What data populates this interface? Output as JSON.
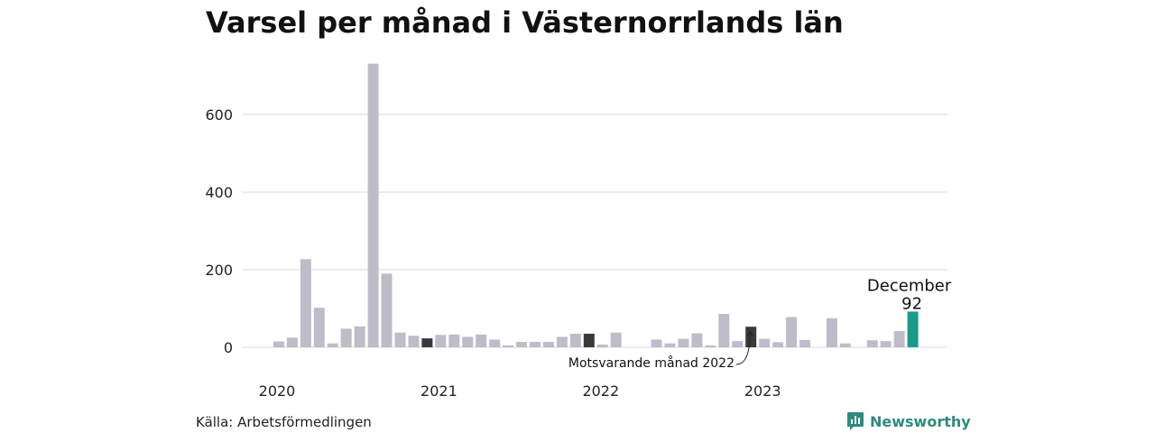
{
  "title": "Varsel per månad i Västernorrlands län",
  "source": "Källa: Arbetsförmedlingen",
  "brand": {
    "name": "Newsworthy",
    "icon": "bar-chart-speech-icon"
  },
  "colors": {
    "default": "#bfbcc9",
    "comparison": "#3a3a3a",
    "highlight": "#1a9a8b",
    "grid": "#d9d9d9"
  },
  "chart_data": {
    "type": "bar",
    "title": "Varsel per månad i Västernorrlands län",
    "xlabel": "",
    "ylabel": "",
    "ylim": [
      0,
      730
    ],
    "yticks": [
      0,
      200,
      400,
      600
    ],
    "grid": true,
    "year_labels": [
      {
        "label": "2020",
        "index": 0
      },
      {
        "label": "2021",
        "index": 12
      },
      {
        "label": "2022",
        "index": 24
      },
      {
        "label": "2023",
        "index": 36
      }
    ],
    "values": [
      0,
      15,
      25,
      227,
      102,
      10,
      48,
      54,
      731,
      190,
      38,
      30,
      23,
      32,
      33,
      27,
      33,
      20,
      5,
      14,
      14,
      14,
      27,
      35,
      35,
      7,
      38,
      0,
      0,
      20,
      10,
      22,
      36,
      5,
      86,
      16,
      53,
      22,
      13,
      78,
      19,
      0,
      75,
      10,
      0,
      18,
      16,
      42,
      92
    ],
    "comparison_indices": [
      12,
      24,
      36
    ],
    "highlight_index": 48,
    "annotations": {
      "highlight_label": "December",
      "highlight_value": "92",
      "comparison_label": "Motsvarande månad 2022"
    }
  }
}
